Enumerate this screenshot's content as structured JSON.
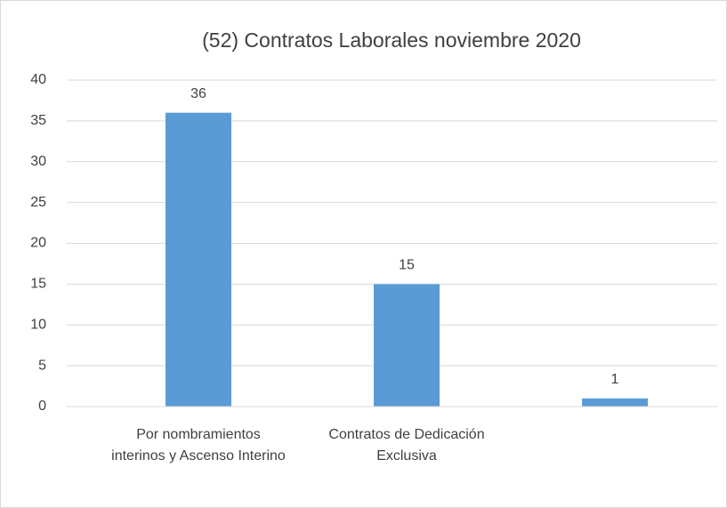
{
  "chart_data": {
    "type": "bar",
    "title": "(52) Contratos Laborales noviembre 2020",
    "categories": [
      "Por nombramientos interinos y Ascenso Interino",
      "Contratos de Dedicación Exclusiva",
      null
    ],
    "values": [
      36,
      15,
      1
    ],
    "color": "#5b9bd5",
    "ylim": [
      0,
      40
    ],
    "yticks": [
      0,
      5,
      10,
      15,
      20,
      25,
      30,
      35,
      40
    ],
    "grid": true
  }
}
